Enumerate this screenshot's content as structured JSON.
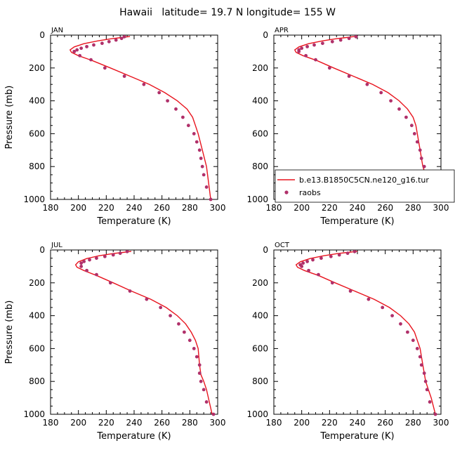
{
  "title": "Hawaii   latitude= 19.7 N longitude= 155 W",
  "colors": {
    "model": "#e8141e",
    "obs": "#b0306a"
  },
  "legend": {
    "placement": "lower-right of APR panel",
    "entries": [
      {
        "label": "b.e13.B1850C5CN.ne120_g16.tur",
        "marker": "line"
      },
      {
        "label": "raobs",
        "marker": "dot"
      }
    ]
  },
  "chart_data": [
    {
      "type": "line",
      "panel_label": "JAN",
      "xlabel": "Temperature (K)",
      "ylabel": "Pressure (mb)",
      "xlim": [
        180,
        300
      ],
      "ylim": [
        1000,
        0
      ],
      "y_reversed": true,
      "xticks": [
        180,
        200,
        220,
        240,
        260,
        280,
        300
      ],
      "yticks": [
        0,
        200,
        400,
        600,
        800,
        1000
      ],
      "series": [
        {
          "kind": "line",
          "x": [
            237,
            231,
            224,
            214,
            204,
            197,
            194,
            195,
            200,
            210,
            223,
            237,
            251,
            262,
            271,
            278,
            282,
            284,
            286,
            289,
            292,
            295
          ],
          "y": [
            8,
            15,
            22,
            35,
            52,
            72,
            90,
            105,
            125,
            155,
            200,
            250,
            300,
            350,
            400,
            450,
            500,
            550,
            600,
            700,
            800,
            1000
          ]
        },
        {
          "kind": "scatter",
          "x": [
            233,
            231,
            227,
            222,
            217,
            211,
            206,
            202,
            199,
            197,
            197,
            201,
            209,
            219,
            233,
            247,
            258,
            264,
            270,
            275,
            279,
            283,
            285,
            287,
            288,
            289,
            290,
            292,
            295
          ],
          "y": [
            10,
            20,
            30,
            40,
            50,
            60,
            70,
            80,
            90,
            100,
            100,
            125,
            150,
            200,
            250,
            300,
            350,
            400,
            450,
            500,
            550,
            600,
            650,
            700,
            750,
            800,
            850,
            925,
            1000
          ]
        }
      ]
    },
    {
      "type": "line",
      "panel_label": "APR",
      "xlabel": "Temperature (K)",
      "ylabel": "",
      "xlim": [
        180,
        300
      ],
      "ylim": [
        1000,
        0
      ],
      "y_reversed": true,
      "xticks": [
        180,
        200,
        220,
        240,
        260,
        280,
        300
      ],
      "yticks": [
        0,
        200,
        400,
        600,
        800,
        1000
      ],
      "series": [
        {
          "kind": "line",
          "x": [
            238,
            232,
            225,
            215,
            205,
            198,
            195,
            196,
            201,
            211,
            223,
            237,
            251,
            262,
            270,
            276,
            280,
            282,
            283,
            285,
            287,
            289,
            291,
            294
          ],
          "y": [
            8,
            15,
            22,
            35,
            52,
            72,
            90,
            105,
            125,
            155,
            200,
            250,
            300,
            350,
            400,
            450,
            500,
            550,
            600,
            700,
            800,
            850,
            900,
            1000
          ]
        },
        {
          "kind": "scatter",
          "x": [
            239,
            234,
            228,
            222,
            215,
            209,
            204,
            200,
            198,
            198,
            203,
            210,
            220,
            234,
            247,
            257,
            264,
            270,
            275,
            279,
            281,
            283,
            285,
            286,
            288,
            289,
            291,
            294
          ],
          "y": [
            10,
            20,
            30,
            40,
            50,
            60,
            70,
            80,
            90,
            100,
            125,
            150,
            200,
            250,
            300,
            350,
            400,
            450,
            500,
            550,
            600,
            650,
            700,
            750,
            800,
            850,
            925,
            1000
          ]
        }
      ]
    },
    {
      "type": "line",
      "panel_label": "JUL",
      "xlabel": "Temperature (K)",
      "ylabel": "Pressure (mb)",
      "xlim": [
        180,
        300
      ],
      "ylim": [
        1000,
        0
      ],
      "y_reversed": true,
      "xticks": [
        180,
        200,
        220,
        240,
        260,
        280,
        300
      ],
      "yticks": [
        0,
        200,
        400,
        600,
        800,
        1000
      ],
      "series": [
        {
          "kind": "line",
          "x": [
            238,
            232,
            225,
            215,
            206,
            200,
            198,
            199,
            204,
            213,
            225,
            238,
            252,
            263,
            271,
            277,
            281,
            284,
            286,
            287,
            288,
            290,
            292,
            296
          ],
          "y": [
            8,
            15,
            22,
            35,
            52,
            72,
            90,
            105,
            125,
            155,
            200,
            250,
            300,
            350,
            400,
            450,
            500,
            550,
            600,
            700,
            760,
            800,
            850,
            1000
          ]
        },
        {
          "kind": "scatter",
          "x": [
            235,
            230,
            225,
            219,
            213,
            208,
            204,
            202,
            202,
            206,
            213,
            223,
            237,
            249,
            259,
            266,
            272,
            276,
            280,
            283,
            285,
            287,
            287,
            288,
            290,
            292,
            297
          ],
          "y": [
            10,
            20,
            30,
            40,
            50,
            60,
            70,
            80,
            100,
            125,
            150,
            200,
            250,
            300,
            350,
            400,
            450,
            500,
            550,
            600,
            650,
            700,
            750,
            800,
            850,
            925,
            1000
          ]
        }
      ]
    },
    {
      "type": "line",
      "panel_label": "OCT",
      "xlabel": "Temperature (K)",
      "ylabel": "",
      "xlim": [
        180,
        300
      ],
      "ylim": [
        1000,
        0
      ],
      "y_reversed": true,
      "xticks": [
        180,
        200,
        220,
        240,
        260,
        280,
        300
      ],
      "yticks": [
        0,
        200,
        400,
        600,
        800,
        1000
      ],
      "series": [
        {
          "kind": "line",
          "x": [
            240,
            233,
            226,
            216,
            206,
            199,
            196,
            197,
            202,
            212,
            224,
            238,
            252,
            263,
            271,
            277,
            281,
            283,
            285,
            287,
            289,
            291,
            293,
            296
          ],
          "y": [
            8,
            15,
            22,
            35,
            52,
            72,
            90,
            105,
            125,
            155,
            200,
            250,
            300,
            350,
            400,
            450,
            500,
            550,
            600,
            700,
            800,
            850,
            900,
            1000
          ]
        },
        {
          "kind": "scatter",
          "x": [
            238,
            233,
            227,
            221,
            214,
            208,
            204,
            201,
            199,
            200,
            205,
            212,
            222,
            235,
            248,
            258,
            265,
            271,
            276,
            280,
            283,
            285,
            286,
            288,
            289,
            290,
            292,
            296
          ],
          "y": [
            10,
            20,
            30,
            40,
            50,
            60,
            70,
            80,
            90,
            100,
            125,
            150,
            200,
            250,
            300,
            350,
            400,
            450,
            500,
            550,
            600,
            650,
            700,
            750,
            800,
            850,
            925,
            1000
          ]
        }
      ]
    }
  ]
}
